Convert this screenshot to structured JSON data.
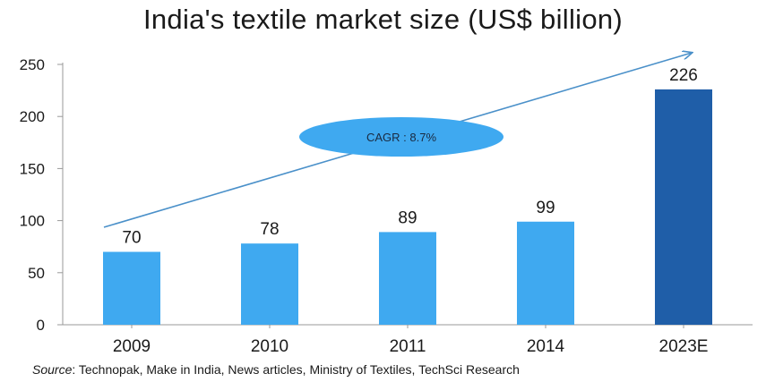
{
  "chart_data": {
    "type": "bar",
    "title": "India's textile market size (US$ billion)",
    "categories": [
      "2009",
      "2010",
      "2011",
      "2014",
      "2023E"
    ],
    "values": [
      70,
      78,
      89,
      99,
      226
    ],
    "data_labels": [
      "70",
      "78",
      "89",
      "99",
      "226"
    ],
    "highlight_index": 4,
    "ylim": [
      0,
      250
    ],
    "yticks": [
      0,
      50,
      100,
      150,
      200,
      250
    ],
    "ytick_labels": [
      "0",
      "50",
      "100",
      "150",
      "200",
      "250"
    ],
    "xlabel": "",
    "ylabel": "",
    "grid": false,
    "annotation": "CAGR : 8.7%",
    "colors": {
      "bar": "#3fa9f0",
      "highlight_bar": "#1f5ea8",
      "arrow": "#4a90c9",
      "ellipse": "#3fa9f0",
      "axis": "#999999"
    }
  },
  "source": {
    "label": "Source",
    "text": ": Technopak, Make in India, News articles, Ministry of Textiles, TechSci Research"
  }
}
